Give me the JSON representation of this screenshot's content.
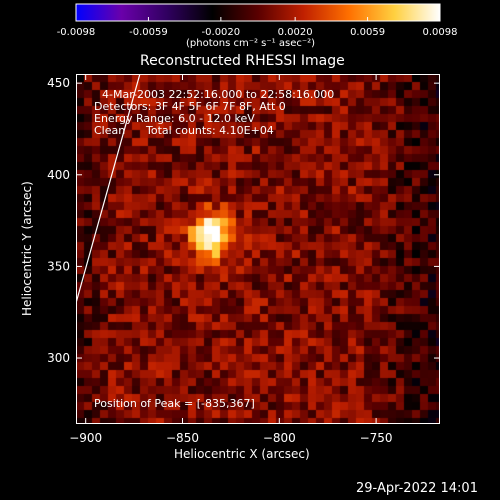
{
  "colorbar": {
    "ticks": [
      "-0.0098",
      "-0.0059",
      "-0.0020",
      "0.0020",
      "0.0059",
      "0.0098"
    ],
    "units": "(photons cm⁻² s⁻¹ asec⁻²)",
    "min": -0.0098,
    "max": 0.0098,
    "colors": [
      "#0000ff",
      "#6a00aa",
      "#300060",
      "#000000",
      "#5a0000",
      "#c02000",
      "#ff7000",
      "#ffd040",
      "#ffffff"
    ]
  },
  "chart_data": {
    "type": "heatmap",
    "title": "Reconstructed RHESSI Image",
    "xlabel": "Heliocentric X (arcsec)",
    "ylabel": "Heliocentric Y (arcsec)",
    "xlim": [
      -905,
      -717
    ],
    "ylim": [
      264,
      455
    ],
    "xticks": [
      -900,
      -850,
      -800,
      -750
    ],
    "yticks": [
      300,
      350,
      400,
      450
    ],
    "xtick_labels": [
      "−900",
      "−850",
      "−800",
      "−750"
    ],
    "ytick_labels": [
      "300",
      "350",
      "400",
      "450"
    ],
    "peak": {
      "x": -835,
      "y": 367,
      "value": 0.0098
    },
    "annotations": [
      "4-Mar-2003 22:52:16.000 to 22:58:16.000",
      "Detectors: 3F 4F 5F 6F 7F 8F, Att 0",
      "Energy Range: 6.0 - 12.0 keV",
      "Clean",
      "Total counts: 4.10E+04",
      "Position of Peak = [-835,367]"
    ],
    "limb_line": {
      "x": [
        -905,
        -872
      ],
      "y": [
        330,
        455
      ]
    },
    "grid": false
  },
  "timestamp": "29-Apr-2022 14:01"
}
